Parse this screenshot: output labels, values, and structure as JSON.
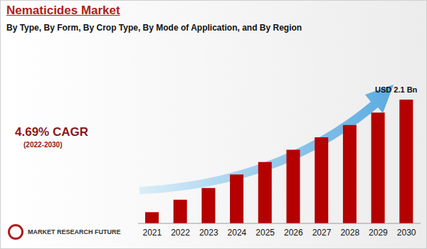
{
  "chart_data": {
    "type": "bar",
    "title": "Nematicides Market",
    "subtitle": "By Type, By Form, By Crop Type, By Mode of Application, and By Region",
    "annotations": {
      "cagr": "4.69% CAGR",
      "period": "(2022-2030)",
      "value_note": "USD 2.1 Bn",
      "source": "MARKET RESEARCH FUTURE"
    },
    "categories": [
      "2021",
      "2022",
      "2023",
      "2024",
      "2025",
      "2026",
      "2027",
      "2028",
      "2029",
      "2030"
    ],
    "values": [
      0.19,
      0.4,
      0.6,
      0.83,
      1.04,
      1.25,
      1.46,
      1.67,
      1.88,
      2.1
    ],
    "color": "#b50000",
    "ylim": [
      0,
      2.1
    ],
    "tick_labels": "x"
  }
}
